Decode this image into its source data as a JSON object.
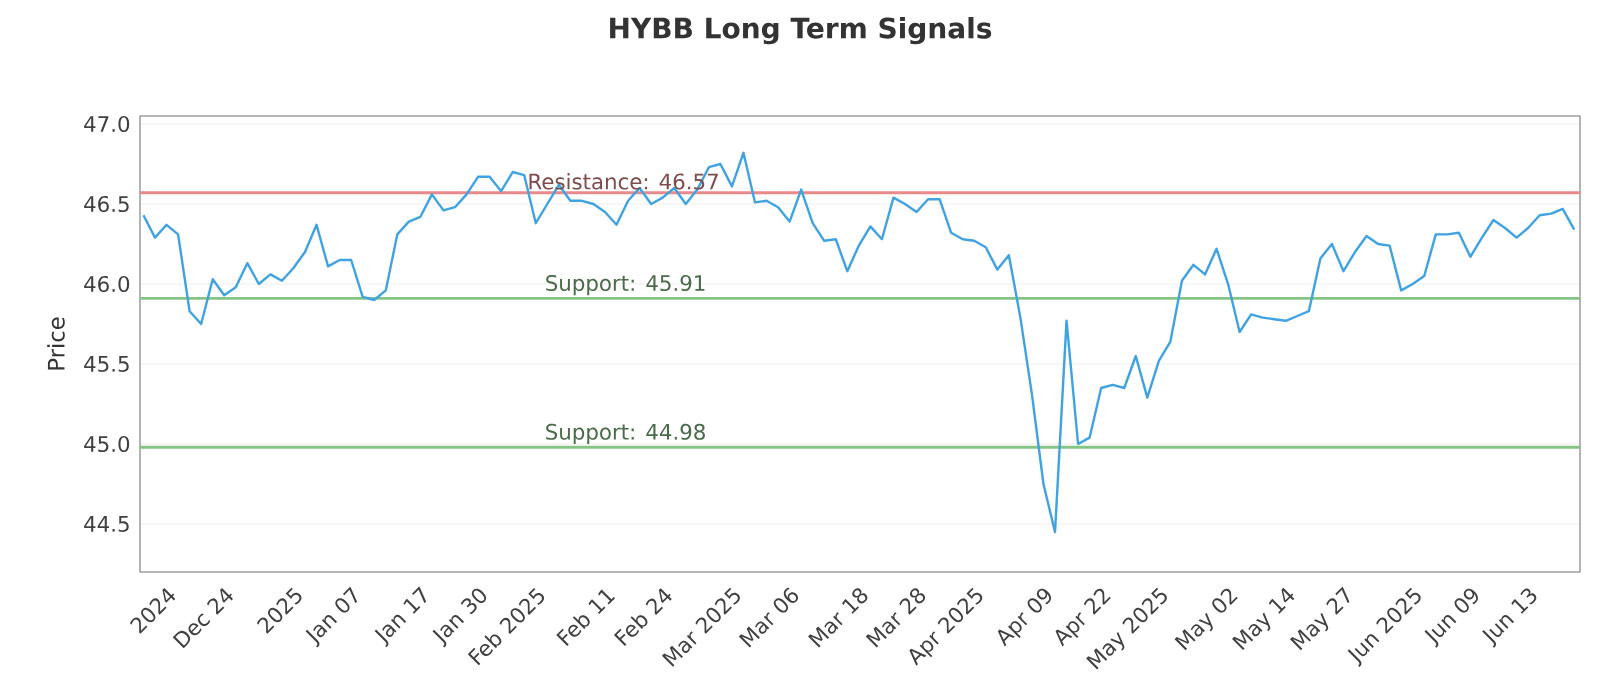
{
  "chart_data": {
    "type": "line",
    "title": "HYBB Long Term Signals",
    "ylabel": "Price",
    "categories": [
      null,
      null,
      "2024",
      null,
      null,
      null,
      null,
      "Dec 24",
      null,
      null,
      null,
      null,
      null,
      "2025",
      null,
      null,
      null,
      null,
      "Jan 07",
      null,
      null,
      null,
      null,
      null,
      "Jan 17",
      null,
      null,
      null,
      null,
      "Jan 30",
      null,
      null,
      null,
      null,
      "Feb 2025",
      null,
      null,
      null,
      null,
      null,
      "Feb 11",
      null,
      null,
      null,
      null,
      "Feb 24",
      null,
      null,
      null,
      null,
      null,
      "Mar 2025",
      null,
      null,
      null,
      null,
      "Mar 06",
      null,
      null,
      null,
      null,
      null,
      "Mar 18",
      null,
      null,
      null,
      null,
      "Mar 28",
      null,
      null,
      null,
      null,
      "Apr 2025",
      null,
      null,
      null,
      null,
      null,
      "Apr 09",
      null,
      null,
      null,
      null,
      "Apr 22",
      null,
      null,
      null,
      null,
      "May 2025",
      null,
      null,
      null,
      null,
      null,
      "May 02",
      null,
      null,
      null,
      null,
      "May 14",
      null,
      null,
      null,
      null,
      "May 27",
      null,
      null,
      null,
      null,
      null,
      "Jun 2025",
      null,
      null,
      null,
      null,
      "Jun 09",
      null,
      null,
      null,
      null,
      "Jun 13",
      null,
      null,
      null,
      null
    ],
    "series": [
      {
        "color": "#3fa3e3",
        "values": [
          46.43,
          46.29,
          46.37,
          46.31,
          45.83,
          45.75,
          46.03,
          45.93,
          45.98,
          46.13,
          46.0,
          46.06,
          46.02,
          46.1,
          46.2,
          46.37,
          46.11,
          46.15,
          46.15,
          45.92,
          45.9,
          45.96,
          46.31,
          46.39,
          46.42,
          46.56,
          46.46,
          46.48,
          46.56,
          46.67,
          46.67,
          46.58,
          46.7,
          46.68,
          46.38,
          46.5,
          46.62,
          46.52,
          46.52,
          46.5,
          46.45,
          46.37,
          46.52,
          46.6,
          46.5,
          46.54,
          46.6,
          46.5,
          46.59,
          46.73,
          46.75,
          46.61,
          46.82,
          46.51,
          46.52,
          46.48,
          46.39,
          46.59,
          46.38,
          46.27,
          46.28,
          46.08,
          46.24,
          46.36,
          46.28,
          46.54,
          46.5,
          46.45,
          46.53,
          46.53,
          46.32,
          46.28,
          46.27,
          46.23,
          46.09,
          46.18,
          45.79,
          45.31,
          44.75,
          44.45,
          45.77,
          45.0,
          45.04,
          45.35,
          45.37,
          45.35,
          45.55,
          45.29,
          45.52,
          45.64,
          46.02,
          46.12,
          46.06,
          46.22,
          46.0,
          45.7,
          45.81,
          45.79,
          45.78,
          45.77,
          45.8,
          45.83,
          46.16,
          46.25,
          46.08,
          46.2,
          46.3,
          46.25,
          46.24,
          45.96,
          46.0,
          46.05,
          46.31,
          46.31,
          46.32,
          46.17,
          46.29,
          46.4,
          46.35,
          46.29,
          46.35,
          46.43,
          46.44,
          46.47,
          46.34
        ]
      }
    ],
    "ylim": [
      44.2,
      47.05
    ],
    "yticks": [
      44.5,
      {
        "value": 45.0,
        "label": "45.0"
      },
      45.5,
      {
        "value": 46.0,
        "label": "46.0"
      },
      46.5,
      {
        "value": 47.0,
        "label": "47.0"
      }
    ],
    "grid": "y",
    "marker": "none",
    "line_style": "solid",
    "ref_lines": [
      {
        "axis": "y",
        "value": 46.57,
        "label": "Resistance: 46.57",
        "color": "#e88a8a"
      },
      {
        "axis": "y",
        "value": 45.91,
        "label": "Support: 45.91",
        "color": "#86c486"
      },
      {
        "axis": "y",
        "value": 44.98,
        "label": "Support: 44.98",
        "color": "#86c486"
      }
    ]
  }
}
